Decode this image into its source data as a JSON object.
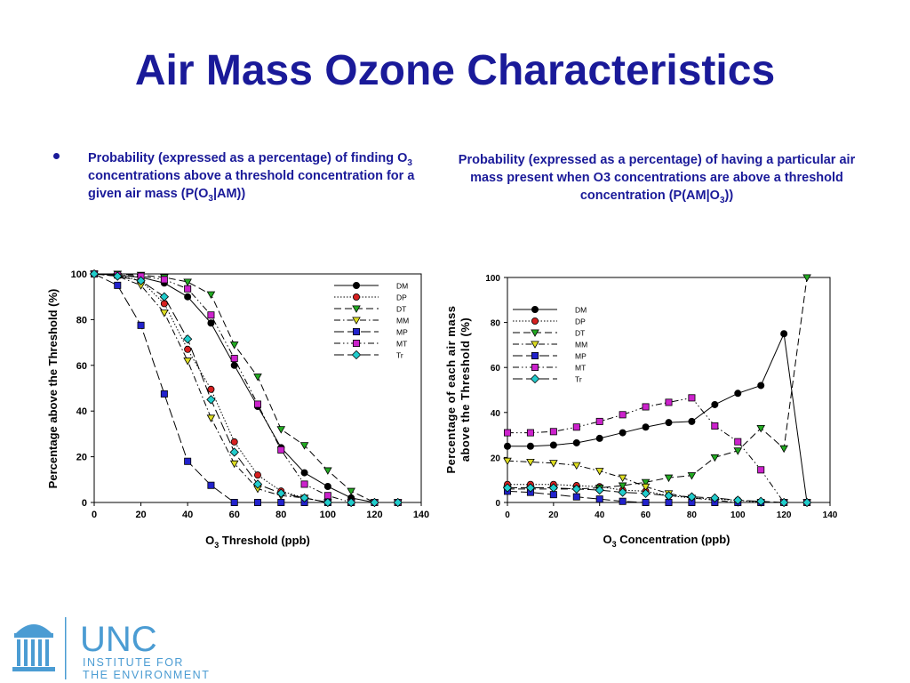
{
  "slide": {
    "title": "Air Mass Ozone Characteristics",
    "left_caption": {
      "part1": "Probability (expressed as a percentage) of finding O",
      "sub1": "3",
      "part2": " concentrations above a threshold concentration for a given air mass (P(O",
      "sub2": "3",
      "part3": "|AM))"
    },
    "right_caption": {
      "part1": "Probability (expressed as a percentage) of having a particular air mass present when O3 concentrations are above a threshold concentration (P(AM|O",
      "sub1": "3",
      "part2": "))"
    },
    "logo": {
      "name": "UNC",
      "line1": "INSTITUTE FOR",
      "line2": "THE ENVIRONMENT",
      "color": "#4b9cd3"
    }
  },
  "chart_data": [
    {
      "type": "line",
      "title": "",
      "xlabel_main": "O",
      "xlabel_sub": "3",
      "xlabel_rest": " Threshold (ppb)",
      "ylabel": "Percentage above the Threshold (%)",
      "xlim": [
        0,
        140
      ],
      "ylim": [
        0,
        100
      ],
      "xticks": [
        0,
        20,
        40,
        60,
        80,
        100,
        120,
        140
      ],
      "yticks": [
        0,
        20,
        40,
        60,
        80,
        100
      ],
      "grid": false,
      "legend_position": "top-right",
      "x": [
        0,
        10,
        20,
        30,
        40,
        50,
        60,
        70,
        80,
        90,
        100,
        110,
        120,
        130
      ],
      "series": [
        {
          "name": "DM",
          "color": "#000000",
          "marker": "circle",
          "dash": "",
          "values": [
            100,
            99.5,
            98.5,
            96,
            90,
            78.5,
            60,
            42,
            24,
            13,
            7,
            2,
            0,
            0
          ]
        },
        {
          "name": "DP",
          "color": "#d62020",
          "marker": "circle",
          "dash": "1.5,2",
          "values": [
            100,
            99.5,
            97,
            87,
            67,
            49.5,
            26.5,
            12,
            5,
            2,
            0,
            0,
            0,
            0
          ]
        },
        {
          "name": "DT",
          "color": "#22aa22",
          "marker": "triangle-down",
          "dash": "8,4",
          "values": [
            100,
            100,
            99.5,
            98.5,
            96.5,
            91,
            69,
            55,
            32,
            25,
            14,
            5,
            0,
            0
          ]
        },
        {
          "name": "MM",
          "color": "#dddd22",
          "marker": "triangle-down",
          "dash": "7,3,1.5,3",
          "values": [
            100,
            99,
            95,
            83,
            62,
            37,
            17,
            6,
            3,
            2,
            0,
            0,
            0,
            0
          ]
        },
        {
          "name": "MP",
          "color": "#2222cc",
          "marker": "square",
          "dash": "11,4",
          "values": [
            100,
            95,
            77.5,
            47.5,
            18,
            7.5,
            0,
            0,
            0,
            0,
            0,
            0,
            0,
            0
          ]
        },
        {
          "name": "MT",
          "color": "#cc22cc",
          "marker": "square",
          "dash": "7,3,1.5,3,1.5,3",
          "values": [
            100,
            99.5,
            99,
            97.5,
            93.5,
            82,
            63,
            43,
            23,
            8,
            3,
            0,
            0,
            0
          ]
        },
        {
          "name": "Tr",
          "color": "#22cccc",
          "marker": "diamond",
          "dash": "11,4",
          "values": [
            100,
            99,
            97,
            90,
            71.5,
            45,
            22,
            8,
            4,
            2,
            0,
            0,
            0,
            0
          ]
        }
      ]
    },
    {
      "type": "line",
      "title": "",
      "xlabel_main": "O",
      "xlabel_sub": "3",
      "xlabel_rest": " Concentration (ppb)",
      "ylabel_line1": "Percentage of each air mass",
      "ylabel_line2": "above the Threshold (%)",
      "xlim": [
        0,
        140
      ],
      "ylim": [
        0,
        100
      ],
      "xticks": [
        0,
        20,
        40,
        60,
        80,
        100,
        120,
        140
      ],
      "yticks": [
        0,
        20,
        40,
        60,
        80,
        100
      ],
      "grid": false,
      "legend_position": "top-left",
      "x": [
        0,
        10,
        20,
        30,
        40,
        50,
        60,
        70,
        80,
        90,
        100,
        110,
        120,
        130
      ],
      "series": [
        {
          "name": "DM",
          "color": "#000000",
          "marker": "circle",
          "dash": "",
          "values": [
            25,
            25,
            25.5,
            26.5,
            28.5,
            31,
            33.5,
            35.5,
            36,
            43.5,
            48.5,
            52,
            75,
            0
          ]
        },
        {
          "name": "DP",
          "color": "#d62020",
          "marker": "circle",
          "dash": "1.5,2",
          "values": [
            8,
            8,
            8,
            7.5,
            7,
            5.5,
            5,
            3,
            2,
            1.5,
            1,
            0,
            0,
            0
          ]
        },
        {
          "name": "DT",
          "color": "#22aa22",
          "marker": "triangle-down",
          "dash": "8,4",
          "values": [
            6,
            6,
            6,
            6,
            6.5,
            7.5,
            9,
            11,
            12,
            20,
            23,
            33,
            24,
            100
          ]
        },
        {
          "name": "MM",
          "color": "#dddd22",
          "marker": "triangle-down",
          "dash": "7,3,1.5,3",
          "values": [
            18.5,
            18,
            17.5,
            16.5,
            14,
            11,
            7,
            4,
            2,
            1,
            0,
            0,
            0,
            0
          ]
        },
        {
          "name": "MP",
          "color": "#2222cc",
          "marker": "square",
          "dash": "11,4",
          "values": [
            5,
            4.5,
            3.5,
            2.5,
            1.5,
            0.5,
            0,
            0,
            0,
            0,
            0,
            0,
            0,
            0
          ]
        },
        {
          "name": "MT",
          "color": "#cc22cc",
          "marker": "square",
          "dash": "7,3,1.5,3,1.5,3",
          "values": [
            31,
            31,
            31.5,
            33.5,
            36,
            39,
            42.5,
            44.5,
            46.5,
            34,
            27,
            14.5,
            0,
            0
          ]
        },
        {
          "name": "Tr",
          "color": "#22cccc",
          "marker": "diamond",
          "dash": "11,4",
          "values": [
            6.5,
            6.5,
            6.5,
            6,
            5.5,
            4.5,
            4,
            3,
            2.5,
            2,
            1,
            0.5,
            0,
            0
          ]
        }
      ]
    }
  ]
}
